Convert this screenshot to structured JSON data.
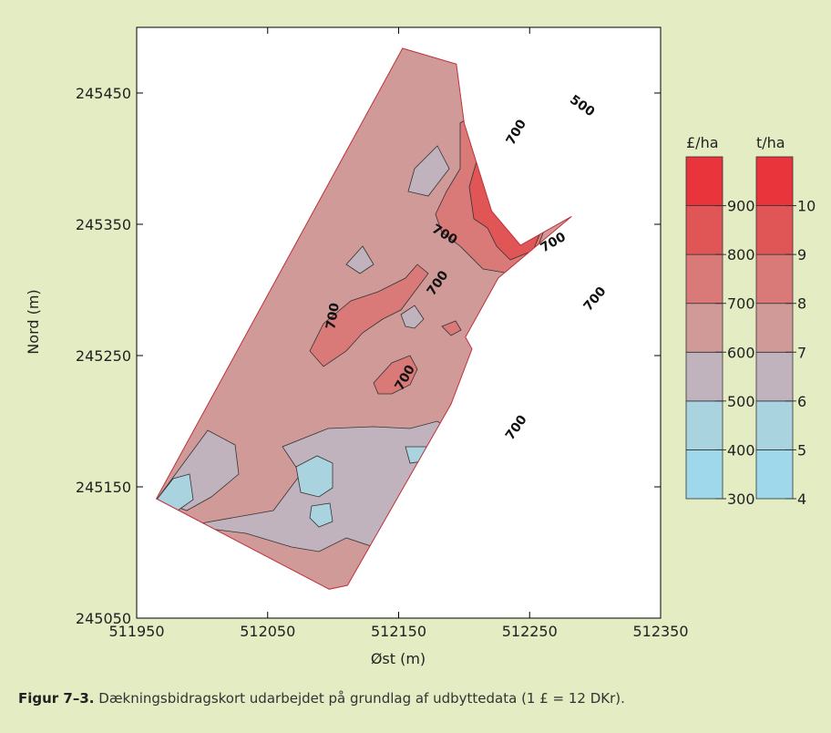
{
  "chart_data": {
    "type": "contour",
    "xlabel": "Øst (m)",
    "ylabel": "Nord (m)",
    "xlim": [
      511950,
      512350
    ],
    "ylim": [
      245050,
      245500
    ],
    "x_ticks": [
      "511950",
      "512050",
      "512150",
      "512250",
      "512350"
    ],
    "y_ticks": [
      "245050",
      "245150",
      "245250",
      "245350",
      "245450"
    ],
    "field_boundary": [
      [
        511965,
        245141
      ],
      [
        512153,
        245484
      ],
      [
        512194,
        245472
      ],
      [
        512200,
        245427
      ],
      [
        512221,
        245360
      ],
      [
        512243,
        245334
      ],
      [
        512282,
        245356
      ],
      [
        512226,
        245309
      ],
      [
        512201,
        245264
      ],
      [
        512206,
        245255
      ],
      [
        512190,
        245213
      ],
      [
        512111,
        245075
      ],
      [
        512097,
        245072
      ]
    ],
    "contour_labels": [
      {
        "text": "500",
        "x": 512290,
        "y": 245440,
        "angle": 35
      },
      {
        "text": "700",
        "x": 512240,
        "y": 245420,
        "angle": -60
      },
      {
        "text": "700",
        "x": 512185,
        "y": 245342,
        "angle": 30
      },
      {
        "text": "700",
        "x": 512268,
        "y": 245336,
        "angle": -30
      },
      {
        "text": "700",
        "x": 512180,
        "y": 245305,
        "angle": -55
      },
      {
        "text": "700",
        "x": 512100,
        "y": 245280,
        "angle": -80
      },
      {
        "text": "700",
        "x": 512300,
        "y": 245293,
        "angle": -50
      },
      {
        "text": "700",
        "x": 512155,
        "y": 245233,
        "angle": -60
      },
      {
        "text": "700",
        "x": 512240,
        "y": 245195,
        "angle": -55
      }
    ],
    "legends": [
      {
        "title": "£/ha",
        "labels": [
          "300",
          "400",
          "500",
          "600",
          "700",
          "800",
          "900"
        ]
      },
      {
        "title": "t/ha",
        "labels": [
          "4",
          "5",
          "6",
          "7",
          "8",
          "9",
          "10"
        ]
      }
    ],
    "color_scale": [
      "#9ed8ea",
      "#a9d3df",
      "#c0b3bd",
      "#d09a99",
      "#d97a78",
      "#e05555",
      "#e8343a"
    ]
  },
  "caption": {
    "label": "Figur 7–3.",
    "text": " Dækningsbidragskort udarbejdet på grundlag af udbyttedata (1 £ = 12 DKr)."
  }
}
